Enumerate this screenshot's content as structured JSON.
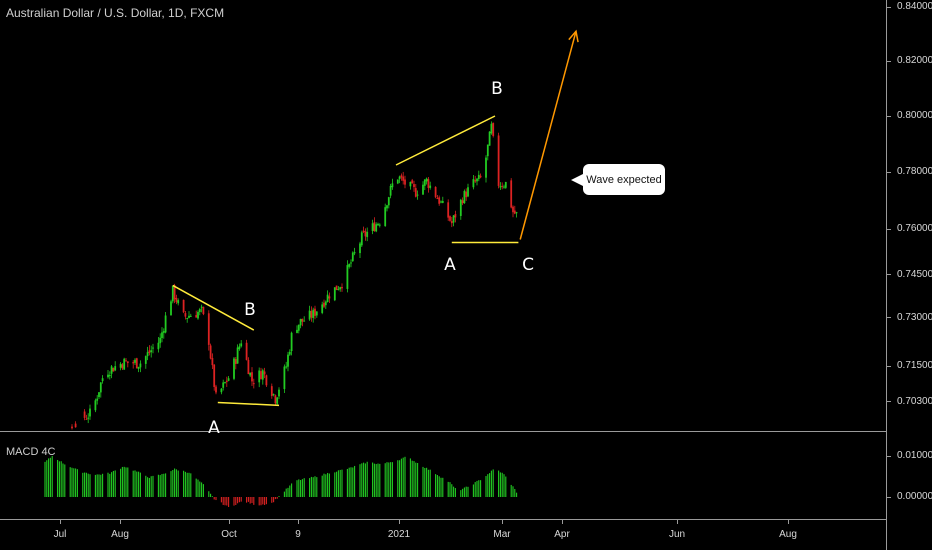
{
  "chart_data": [
    {
      "type": "candlestick",
      "title": "Australian Dollar / U.S. Dollar, 1D, FXCM",
      "x_ticks": [
        "Jul",
        "Aug",
        "Oct",
        "9",
        "2021",
        "Mar",
        "Apr",
        "Jun",
        "Aug"
      ],
      "y_ticks": [
        "0.84000",
        "0.82000",
        "0.80000",
        "0.78000",
        "0.76000",
        "0.74500",
        "0.73000",
        "0.71500",
        "0.70300"
      ],
      "price_path": [
        {
          "x": "Jun 22",
          "y": 0.693
        },
        {
          "x": "Jun 30",
          "y": 0.689
        },
        {
          "x": "Jul 5",
          "y": 0.694
        },
        {
          "x": "Jul 18",
          "y": 0.699
        },
        {
          "x": "Jul 25",
          "y": 0.713
        },
        {
          "x": "Aug 4",
          "y": 0.716
        },
        {
          "x": "Aug 14",
          "y": 0.716
        },
        {
          "x": "Aug 25",
          "y": 0.723
        },
        {
          "x": "Sep 1",
          "y": 0.739
        },
        {
          "x": "Sep 7",
          "y": 0.73
        },
        {
          "x": "Sep 17",
          "y": 0.732
        },
        {
          "x": "Sep 21",
          "y": 0.723
        },
        {
          "x": "Sep 25",
          "y": 0.704
        },
        {
          "x": "Oct 3",
          "y": 0.712
        },
        {
          "x": "Oct 9",
          "y": 0.723
        },
        {
          "x": "Oct 15",
          "y": 0.71
        },
        {
          "x": "Oct 21",
          "y": 0.713
        },
        {
          "x": "Oct 28",
          "y": 0.704
        },
        {
          "x": "Nov 3",
          "y": 0.715
        },
        {
          "x": "Nov 7",
          "y": 0.727
        },
        {
          "x": "Nov 18",
          "y": 0.731
        },
        {
          "x": "Nov 27",
          "y": 0.738
        },
        {
          "x": "Dec 4",
          "y": 0.742
        },
        {
          "x": "Dec 15",
          "y": 0.757
        },
        {
          "x": "Dec 25",
          "y": 0.763
        },
        {
          "x": "Jan 3",
          "y": 0.779
        },
        {
          "x": "Jan 8",
          "y": 0.776
        },
        {
          "x": "Jan 14",
          "y": 0.773
        },
        {
          "x": "Jan 20",
          "y": 0.777
        },
        {
          "x": "Jan 28",
          "y": 0.769
        },
        {
          "x": "Feb 3",
          "y": 0.762
        },
        {
          "x": "Feb 9",
          "y": 0.771
        },
        {
          "x": "Feb 15",
          "y": 0.776
        },
        {
          "x": "Feb 20",
          "y": 0.778
        },
        {
          "x": "Feb 25",
          "y": 0.796
        },
        {
          "x": "Mar 1",
          "y": 0.776
        },
        {
          "x": "Mar 5",
          "y": 0.776
        },
        {
          "x": "Mar 9",
          "y": 0.766
        },
        {
          "x": "Mar 11",
          "y": 0.765
        }
      ],
      "annotations": [
        {
          "type": "trendline",
          "color": "#ffeb3b",
          "from": {
            "x": "Sep 1",
            "y": 0.741
          },
          "to": {
            "x": "Oct 16",
            "y": 0.726
          }
        },
        {
          "type": "trendline",
          "color": "#ffeb3b",
          "from": {
            "x": "Sep 26",
            "y": 0.7025
          },
          "to": {
            "x": "Oct 30",
            "y": 0.7015
          }
        },
        {
          "type": "trendline",
          "color": "#ffeb3b",
          "from": {
            "x": "Jan 3",
            "y": 0.7825
          },
          "to": {
            "x": "Feb 27",
            "y": 0.8
          }
        },
        {
          "type": "trendline",
          "color": "#ffeb3b",
          "from": {
            "x": "Feb 3",
            "y": 0.7555
          },
          "to": {
            "x": "Mar 12",
            "y": 0.7555
          }
        },
        {
          "type": "arrow",
          "color": "#ff9800",
          "from": {
            "x": "Mar 13",
            "y": 0.7565
          },
          "to": {
            "x": "Apr 13",
            "y": 0.831
          }
        },
        {
          "type": "label",
          "text": "A",
          "x": "Sep 26",
          "y": 0.699
        },
        {
          "type": "label",
          "text": "B",
          "x": "Oct 17",
          "y": 0.73
        },
        {
          "type": "label",
          "text": "B",
          "x": "Feb 27",
          "y": 0.809
        },
        {
          "type": "label",
          "text": "A",
          "x": "Feb 3",
          "y": 0.749
        },
        {
          "type": "label",
          "text": "C",
          "x": "Mar 13",
          "y": 0.749
        },
        {
          "type": "callout",
          "text": "Wave expected",
          "x": "Apr 17",
          "y": 0.778
        }
      ]
    },
    {
      "type": "bar",
      "title": "MACD 4C",
      "y_ticks": [
        "0.01000",
        "0.00000"
      ],
      "series_points": [
        {
          "x": "Jun 22",
          "y": 0.0085
        },
        {
          "x": "Jun 26",
          "y": 0.01
        },
        {
          "x": "Jul 3",
          "y": 0.008
        },
        {
          "x": "Jul 12",
          "y": 0.0062
        },
        {
          "x": "Jul 20",
          "y": 0.0054
        },
        {
          "x": "Jul 28",
          "y": 0.0058
        },
        {
          "x": "Aug 5",
          "y": 0.0075
        },
        {
          "x": "Aug 12",
          "y": 0.0062
        },
        {
          "x": "Aug 19",
          "y": 0.0048
        },
        {
          "x": "Aug 26",
          "y": 0.0055
        },
        {
          "x": "Sep 2",
          "y": 0.0068
        },
        {
          "x": "Sep 10",
          "y": 0.006
        },
        {
          "x": "Sep 18",
          "y": 0.003
        },
        {
          "x": "Sep 24",
          "y": -0.0005
        },
        {
          "x": "Oct 2",
          "y": -0.0025
        },
        {
          "x": "Oct 10",
          "y": -0.001
        },
        {
          "x": "Oct 18",
          "y": -0.002
        },
        {
          "x": "Oct 26",
          "y": -0.0015
        },
        {
          "x": "Nov 1",
          "y": 0.001
        },
        {
          "x": "Nov 8",
          "y": 0.004
        },
        {
          "x": "Nov 18",
          "y": 0.0048
        },
        {
          "x": "Nov 28",
          "y": 0.006
        },
        {
          "x": "Dec 8",
          "y": 0.007
        },
        {
          "x": "Dec 18",
          "y": 0.0085
        },
        {
          "x": "Dec 26",
          "y": 0.008
        },
        {
          "x": "Jan 4",
          "y": 0.009
        },
        {
          "x": "Jan 9",
          "y": 0.0098
        },
        {
          "x": "Jan 16",
          "y": 0.008
        },
        {
          "x": "Jan 24",
          "y": 0.006
        },
        {
          "x": "Feb 2",
          "y": 0.0035
        },
        {
          "x": "Feb 6",
          "y": 0.0015
        },
        {
          "x": "Feb 12",
          "y": 0.0025
        },
        {
          "x": "Feb 20",
          "y": 0.0045
        },
        {
          "x": "Feb 27",
          "y": 0.007
        },
        {
          "x": "Mar 4",
          "y": 0.0055
        },
        {
          "x": "Mar 9",
          "y": 0.0025
        },
        {
          "x": "Mar 11",
          "y": 0.0012
        }
      ]
    }
  ],
  "colors": {
    "up": "#22cc22",
    "down": "#dd2222",
    "trend": "#ffeb3b",
    "arrow": "#ff9800"
  }
}
